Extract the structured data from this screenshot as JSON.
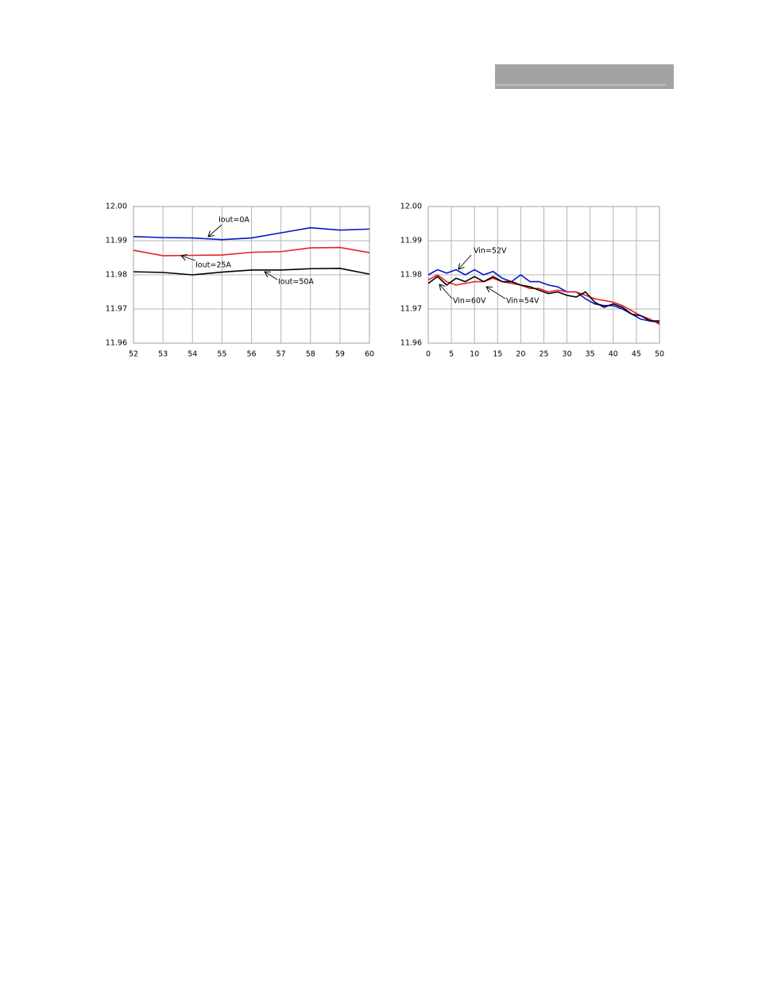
{
  "chart_data": [
    {
      "type": "line",
      "x": [
        52,
        53,
        54,
        55,
        56,
        57,
        58,
        59,
        60
      ],
      "xlim": [
        52,
        60
      ],
      "xticks": [
        52,
        53,
        54,
        55,
        56,
        57,
        58,
        59,
        60
      ],
      "ylim": [
        11.96,
        12.0
      ],
      "yticks": [
        11.96,
        11.97,
        11.98,
        11.99,
        {
          "value": 12.0,
          "label": "12.00"
        }
      ],
      "grid": true,
      "series": [
        {
          "name": "Iout=0A",
          "color": "#0a14c8",
          "values": [
            11.9912,
            11.9909,
            11.9908,
            11.9903,
            11.9908,
            11.9923,
            11.9938,
            11.9931,
            11.9934
          ]
        },
        {
          "name": "Iout=25A",
          "color": "#e8202a",
          "values": [
            11.9872,
            11.9856,
            11.9857,
            11.9858,
            11.9866,
            11.9868,
            11.9879,
            11.988,
            11.9865
          ]
        },
        {
          "name": "Iout=50A",
          "color": "#000000",
          "values": [
            11.9809,
            11.9807,
            11.98,
            11.9808,
            11.9814,
            11.9814,
            11.9818,
            11.9819,
            11.9802
          ]
        }
      ]
    },
    {
      "type": "line",
      "x": [
        0,
        2,
        4,
        6,
        8,
        10,
        12,
        14,
        16,
        18,
        20,
        22,
        24,
        26,
        28,
        30,
        32,
        34,
        36,
        38,
        40,
        42,
        44,
        46,
        48,
        50
      ],
      "xlim": [
        0,
        50
      ],
      "xticks": [
        0,
        5,
        10,
        15,
        20,
        25,
        30,
        35,
        40,
        45,
        50
      ],
      "ylim": [
        11.96,
        12.0
      ],
      "yticks": [
        11.96,
        11.97,
        11.98,
        11.99,
        {
          "value": 12.0,
          "label": "12.00"
        }
      ],
      "grid": true,
      "series": [
        {
          "name": "Vin=52V",
          "color": "#0a14c8",
          "values": [
            11.98,
            11.9815,
            11.9805,
            11.9815,
            11.98,
            11.9815,
            11.98,
            11.981,
            11.979,
            11.978,
            11.98,
            11.978,
            11.978,
            11.977,
            11.9765,
            11.975,
            11.975,
            11.973,
            11.9715,
            11.971,
            11.971,
            11.97,
            11.9685,
            11.967,
            11.9665,
            11.966
          ]
        },
        {
          "name": "Vin=54V",
          "color": "#e8202a",
          "values": [
            11.9785,
            11.98,
            11.978,
            11.977,
            11.9775,
            11.978,
            11.978,
            11.979,
            11.978,
            11.9775,
            11.977,
            11.976,
            11.976,
            11.975,
            11.9755,
            11.975,
            11.975,
            11.974,
            11.973,
            11.9725,
            11.972,
            11.971,
            11.9695,
            11.968,
            11.967,
            11.9655
          ]
        },
        {
          "name": "Vin=60V",
          "color": "#000000",
          "values": [
            11.9775,
            11.9795,
            11.977,
            11.979,
            11.978,
            11.9795,
            11.978,
            11.9795,
            11.978,
            11.978,
            11.977,
            11.9765,
            11.9755,
            11.9745,
            11.975,
            11.974,
            11.9735,
            11.975,
            11.972,
            11.9705,
            11.9715,
            11.9705,
            11.9685,
            11.968,
            11.9665,
            11.9665
          ]
        }
      ]
    }
  ]
}
